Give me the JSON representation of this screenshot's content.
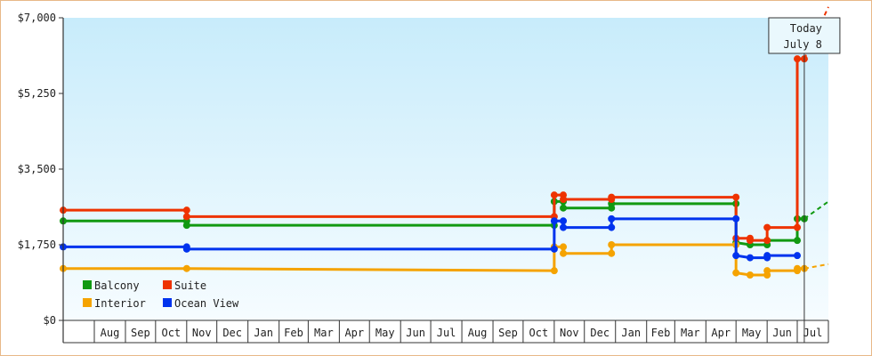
{
  "chart_data": {
    "type": "line",
    "title": "",
    "xlabel": "",
    "ylabel": "",
    "ylim": [
      0,
      7000
    ],
    "y_ticks": [
      {
        "value": 0,
        "label": "$0"
      },
      {
        "value": 1750,
        "label": "$1,750"
      },
      {
        "value": 3500,
        "label": "$3,500"
      },
      {
        "value": 5250,
        "label": "$5,250"
      },
      {
        "value": 7000,
        "label": "$7,000"
      }
    ],
    "x_start": "2019-07",
    "x_end": "2021-08",
    "month_labels": [
      "Aug",
      "Sep",
      "Oct",
      "Nov",
      "Dec",
      "Jan",
      "Feb",
      "Mar",
      "Apr",
      "May",
      "Jun",
      "Jul",
      "Aug",
      "Sep",
      "Oct",
      "Nov",
      "Dec",
      "Jan",
      "Feb",
      "Mar",
      "Apr",
      "May",
      "Jun",
      "Jul"
    ],
    "today": {
      "label_line1": "Today",
      "label_line2": "July 8",
      "date": "2021-07-08"
    },
    "legend": {
      "placement": "bottom-left"
    },
    "grid": {
      "horizontal": false,
      "vertical": false
    },
    "series": [
      {
        "name": "Balcony",
        "color": "#119911",
        "points": [
          {
            "x": "2019-07-01",
            "y": 2300
          },
          {
            "x": "2019-11-01",
            "y": 2300
          },
          {
            "x": "2019-11-01",
            "y": 2200
          },
          {
            "x": "2020-11-01",
            "y": 2200
          },
          {
            "x": "2020-11-01",
            "y": 2750
          },
          {
            "x": "2020-11-10",
            "y": 2750
          },
          {
            "x": "2020-11-10",
            "y": 2600
          },
          {
            "x": "2020-12-28",
            "y": 2600
          },
          {
            "x": "2020-12-28",
            "y": 2700
          },
          {
            "x": "2021-05-01",
            "y": 2700
          },
          {
            "x": "2021-05-01",
            "y": 1800
          },
          {
            "x": "2021-05-15",
            "y": 1750
          },
          {
            "x": "2021-06-01",
            "y": 1750
          },
          {
            "x": "2021-06-01",
            "y": 1850
          },
          {
            "x": "2021-07-01",
            "y": 1850
          },
          {
            "x": "2021-07-01",
            "y": 2350
          },
          {
            "x": "2021-07-08",
            "y": 2350
          }
        ],
        "forecast": [
          {
            "x": "2021-07-08",
            "y": 2350
          },
          {
            "x": "2021-08-01",
            "y": 2750
          }
        ]
      },
      {
        "name": "Suite",
        "color": "#ee3300",
        "points": [
          {
            "x": "2019-07-01",
            "y": 2550
          },
          {
            "x": "2019-11-01",
            "y": 2550
          },
          {
            "x": "2019-11-01",
            "y": 2400
          },
          {
            "x": "2020-11-01",
            "y": 2400
          },
          {
            "x": "2020-11-01",
            "y": 2900
          },
          {
            "x": "2020-11-10",
            "y": 2900
          },
          {
            "x": "2020-11-10",
            "y": 2800
          },
          {
            "x": "2020-12-28",
            "y": 2800
          },
          {
            "x": "2020-12-28",
            "y": 2850
          },
          {
            "x": "2021-05-01",
            "y": 2850
          },
          {
            "x": "2021-05-01",
            "y": 1900
          },
          {
            "x": "2021-05-15",
            "y": 1900
          },
          {
            "x": "2021-05-15",
            "y": 1850
          },
          {
            "x": "2021-06-01",
            "y": 1850
          },
          {
            "x": "2021-06-01",
            "y": 2150
          },
          {
            "x": "2021-07-01",
            "y": 2150
          },
          {
            "x": "2021-07-01",
            "y": 6050
          },
          {
            "x": "2021-07-08",
            "y": 6050
          }
        ],
        "forecast": [
          {
            "x": "2021-07-08",
            "y": 6050
          },
          {
            "x": "2021-08-01",
            "y": 7250
          }
        ]
      },
      {
        "name": "Interior",
        "color": "#f5a300",
        "points": [
          {
            "x": "2019-07-01",
            "y": 1200
          },
          {
            "x": "2019-11-01",
            "y": 1200
          },
          {
            "x": "2020-11-01",
            "y": 1150
          },
          {
            "x": "2020-11-01",
            "y": 1700
          },
          {
            "x": "2020-11-10",
            "y": 1700
          },
          {
            "x": "2020-11-10",
            "y": 1550
          },
          {
            "x": "2020-12-28",
            "y": 1550
          },
          {
            "x": "2020-12-28",
            "y": 1750
          },
          {
            "x": "2021-05-01",
            "y": 1750
          },
          {
            "x": "2021-05-01",
            "y": 1100
          },
          {
            "x": "2021-05-15",
            "y": 1050
          },
          {
            "x": "2021-06-01",
            "y": 1050
          },
          {
            "x": "2021-06-01",
            "y": 1150
          },
          {
            "x": "2021-07-01",
            "y": 1150
          },
          {
            "x": "2021-07-01",
            "y": 1200
          },
          {
            "x": "2021-07-08",
            "y": 1200
          }
        ],
        "forecast": [
          {
            "x": "2021-07-08",
            "y": 1200
          },
          {
            "x": "2021-08-01",
            "y": 1300
          }
        ]
      },
      {
        "name": "Ocean View",
        "color": "#0033ee",
        "points": [
          {
            "x": "2019-07-01",
            "y": 1700
          },
          {
            "x": "2019-11-01",
            "y": 1700
          },
          {
            "x": "2019-11-01",
            "y": 1650
          },
          {
            "x": "2020-11-01",
            "y": 1650
          },
          {
            "x": "2020-11-01",
            "y": 2300
          },
          {
            "x": "2020-11-10",
            "y": 2300
          },
          {
            "x": "2020-11-10",
            "y": 2150
          },
          {
            "x": "2020-12-28",
            "y": 2150
          },
          {
            "x": "2020-12-28",
            "y": 2350
          },
          {
            "x": "2021-05-01",
            "y": 2350
          },
          {
            "x": "2021-05-01",
            "y": 1500
          },
          {
            "x": "2021-05-15",
            "y": 1450
          },
          {
            "x": "2021-06-01",
            "y": 1450
          },
          {
            "x": "2021-06-01",
            "y": 1500
          },
          {
            "x": "2021-07-01",
            "y": 1500
          }
        ],
        "forecast": []
      }
    ]
  }
}
